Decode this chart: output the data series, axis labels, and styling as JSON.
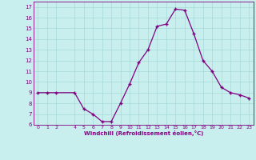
{
  "x": [
    0,
    1,
    2,
    4,
    5,
    6,
    7,
    8,
    9,
    10,
    11,
    12,
    13,
    14,
    15,
    16,
    17,
    18,
    19,
    20,
    21,
    22,
    23
  ],
  "y": [
    9,
    9,
    9,
    9,
    7.5,
    7,
    6.3,
    6.3,
    8,
    9.8,
    11.8,
    13,
    15.2,
    15.4,
    16.8,
    16.7,
    14.5,
    12,
    11,
    9.5,
    9,
    8.8,
    8.5
  ],
  "line_color": "#800080",
  "marker": "+",
  "marker_size": 3.5,
  "linewidth": 0.9,
  "background_color": "#c8eeed",
  "grid_color": "#a8d8d8",
  "xlabel": "Windchill (Refroidissement éolien,°C)",
  "xlabel_color": "#800080",
  "tick_color": "#800080",
  "xlim": [
    -0.5,
    23.5
  ],
  "ylim": [
    6,
    17.5
  ],
  "yticks": [
    6,
    7,
    8,
    9,
    10,
    11,
    12,
    13,
    14,
    15,
    16,
    17
  ],
  "xticks": [
    0,
    1,
    2,
    4,
    5,
    6,
    7,
    8,
    9,
    10,
    11,
    12,
    13,
    14,
    15,
    16,
    17,
    18,
    19,
    20,
    21,
    22,
    23
  ]
}
